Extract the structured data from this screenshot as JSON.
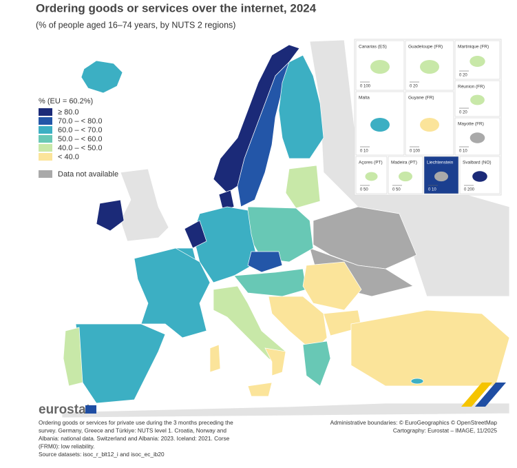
{
  "header": {
    "title": "Ordering goods or services over the internet, 2024",
    "subtitle": "(% of people aged 16–74 years, by NUTS 2 regions)"
  },
  "legend": {
    "title": "% (EU = 60.2%)",
    "items": [
      {
        "label": "≥ 80.0",
        "color": "#1b2a78"
      },
      {
        "label": "70.0 – < 80.0",
        "color": "#2356a8"
      },
      {
        "label": "60.0 – < 70.0",
        "color": "#3cafc3"
      },
      {
        "label": "50.0 – < 60.0",
        "color": "#68c8b5"
      },
      {
        "label": "40.0 – < 50.0",
        "color": "#c8e8a8"
      },
      {
        "label": "< 40.0",
        "color": "#fbe49a"
      },
      {
        "label": "Data not available",
        "color": "#a9a9a9"
      }
    ]
  },
  "insets": [
    {
      "label": "Canarias (ES)",
      "scale": "0 100"
    },
    {
      "label": "Guadeloupe (FR)",
      "scale": "0 20"
    },
    {
      "label": "Martinique (FR)",
      "scale": "0 20"
    },
    {
      "label": "Réunion (FR)",
      "scale": "0 20"
    },
    {
      "label": "Malta",
      "scale": "0 10"
    },
    {
      "label": "Guyane (FR)",
      "scale": "0 100"
    },
    {
      "label": "Mayotte (FR)",
      "scale": "0 10"
    },
    {
      "label": "Açores (PT)",
      "scale": "0 50"
    },
    {
      "label": "Madeira (PT)",
      "scale": "0 50"
    },
    {
      "label": "Liechtenstein",
      "scale": "0 10"
    },
    {
      "label": "Svalbard (NO)",
      "scale": "0 200"
    }
  ],
  "footer": {
    "brand": "eurostat",
    "notes": [
      "Ordering goods or services for private use during the 3 months preceding the",
      "survey. Germany, Greece and Türkiye: NUTS level 1. Croatia, Norway and",
      "Albania: national data. Switzerland and Albania: 2023. Iceland: 2021. Corse",
      "(FRM0): low reliability.",
      "Source datasets: isoc_r_blt12_i and isoc_ec_ib20"
    ],
    "credits": [
      "Administrative boundaries: © EuroGeographics © OpenStreetMap",
      "Cartography: Eurostat – IMAGE, 11/2025"
    ]
  }
}
